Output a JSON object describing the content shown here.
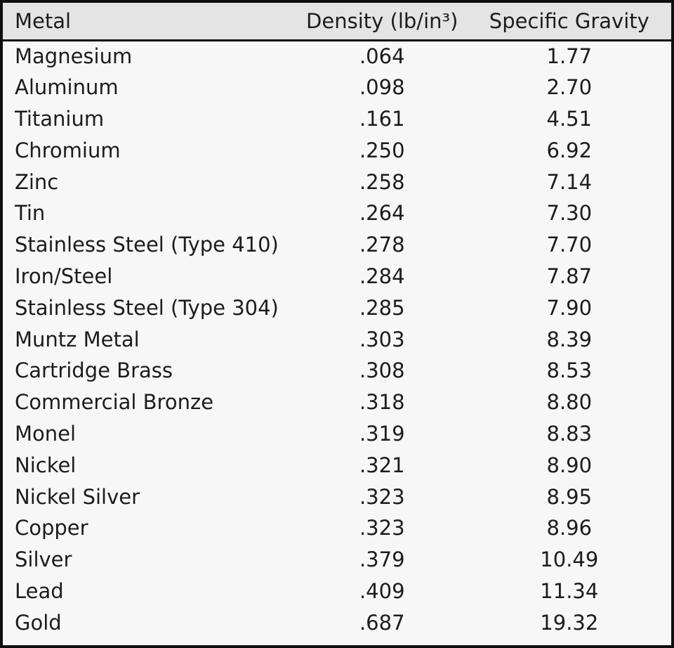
{
  "colors": {
    "header_bg": "#e4e4e4",
    "body_bg": "#f7f7f7",
    "border": "#0f0f0f",
    "text": "#1c1c1c"
  },
  "table": {
    "columns": [
      "Metal",
      "Density (lb/in³)",
      "Specific Gravity"
    ],
    "rows": [
      {
        "metal": "Magnesium",
        "density": ".064",
        "specific_gravity": "1.77"
      },
      {
        "metal": "Aluminum",
        "density": ".098",
        "specific_gravity": "2.70"
      },
      {
        "metal": "Titanium",
        "density": ".161",
        "specific_gravity": "4.51"
      },
      {
        "metal": "Chromium",
        "density": ".250",
        "specific_gravity": "6.92"
      },
      {
        "metal": "Zinc",
        "density": ".258",
        "specific_gravity": "7.14"
      },
      {
        "metal": "Tin",
        "density": ".264",
        "specific_gravity": "7.30"
      },
      {
        "metal": "Stainless Steel (Type 410)",
        "density": ".278",
        "specific_gravity": "7.70"
      },
      {
        "metal": "Iron/Steel",
        "density": ".284",
        "specific_gravity": "7.87"
      },
      {
        "metal": "Stainless Steel (Type 304)",
        "density": ".285",
        "specific_gravity": "7.90"
      },
      {
        "metal": "Muntz Metal",
        "density": ".303",
        "specific_gravity": "8.39"
      },
      {
        "metal": "Cartridge Brass",
        "density": ".308",
        "specific_gravity": "8.53"
      },
      {
        "metal": "Commercial Bronze",
        "density": ".318",
        "specific_gravity": "8.80"
      },
      {
        "metal": "Monel",
        "density": ".319",
        "specific_gravity": "8.83"
      },
      {
        "metal": "Nickel",
        "density": ".321",
        "specific_gravity": "8.90"
      },
      {
        "metal": "Nickel Silver",
        "density": ".323",
        "specific_gravity": "8.95"
      },
      {
        "metal": "Copper",
        "density": ".323",
        "specific_gravity": "8.96"
      },
      {
        "metal": "Silver",
        "density": ".379",
        "specific_gravity": "10.49"
      },
      {
        "metal": "Lead",
        "density": ".409",
        "specific_gravity": "11.34"
      },
      {
        "metal": "Gold",
        "density": ".687",
        "specific_gravity": "19.32"
      }
    ]
  }
}
